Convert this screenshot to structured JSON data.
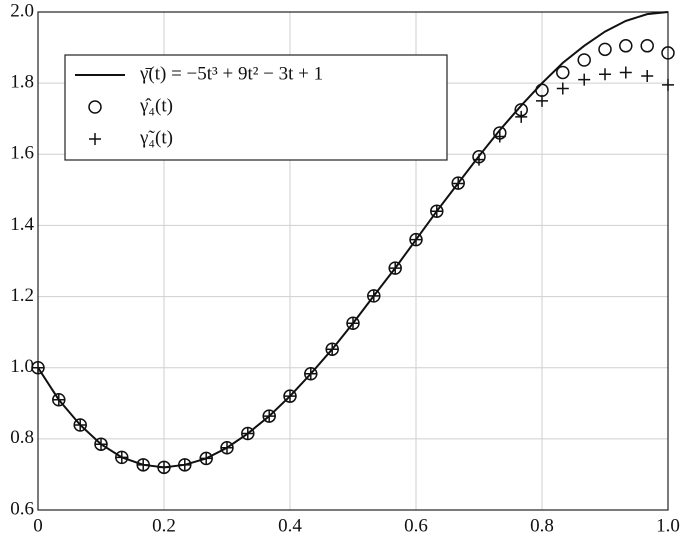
{
  "chart_data": {
    "type": "line",
    "x": [
      0,
      0.033,
      0.067,
      0.1,
      0.133,
      0.167,
      0.2,
      0.233,
      0.267,
      0.3,
      0.333,
      0.367,
      0.4,
      0.433,
      0.467,
      0.5,
      0.533,
      0.567,
      0.6,
      0.633,
      0.667,
      0.7,
      0.733,
      0.767,
      0.8,
      0.833,
      0.867,
      0.9,
      0.933,
      0.967,
      1
    ],
    "series": [
      {
        "name": "γ̄(t) = −5t³ + 9t² − 3t + 1",
        "color": "#111111",
        "marker": "line",
        "values": [
          1,
          0.91,
          0.839,
          0.785,
          0.748,
          0.727,
          0.72,
          0.727,
          0.745,
          0.775,
          0.815,
          0.864,
          0.92,
          0.983,
          1.052,
          1.125,
          1.202,
          1.28,
          1.36,
          1.44,
          1.519,
          1.595,
          1.668,
          1.737,
          1.8,
          1.857,
          1.905,
          1.945,
          1.975,
          1.994,
          2
        ]
      },
      {
        "name": "γ̂₄(t)",
        "color": "#111111",
        "marker": "circle",
        "values": [
          1,
          0.91,
          0.839,
          0.785,
          0.748,
          0.727,
          0.72,
          0.727,
          0.745,
          0.775,
          0.815,
          0.864,
          0.92,
          0.983,
          1.052,
          1.125,
          1.202,
          1.28,
          1.36,
          1.44,
          1.519,
          1.593,
          1.66,
          1.725,
          1.78,
          1.83,
          1.865,
          1.895,
          1.905,
          1.905,
          1.885
        ]
      },
      {
        "name": "γ̃₄(t)",
        "color": "#111111",
        "marker": "plus",
        "values": [
          1,
          0.91,
          0.839,
          0.785,
          0.748,
          0.727,
          0.72,
          0.727,
          0.745,
          0.775,
          0.815,
          0.864,
          0.92,
          0.983,
          1.052,
          1.125,
          1.202,
          1.28,
          1.36,
          1.44,
          1.518,
          1.585,
          1.65,
          1.705,
          1.75,
          1.785,
          1.81,
          1.825,
          1.83,
          1.82,
          1.795
        ]
      }
    ],
    "xlim": [
      0,
      1
    ],
    "xticks": [
      0,
      0.2,
      0.4,
      0.6,
      0.8,
      {
        "value": 1,
        "label": "1.0"
      }
    ],
    "ylim": [
      0.6,
      2
    ],
    "yticks": [
      0.6,
      0.8,
      {
        "value": 1,
        "label": "1.0"
      },
      1.2,
      1.4,
      1.6,
      1.8,
      {
        "value": 2,
        "label": "2.0"
      }
    ],
    "grid": true,
    "legend": "upper left"
  }
}
